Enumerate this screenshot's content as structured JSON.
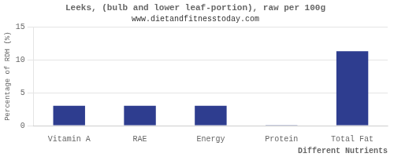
{
  "chart_data": {
    "type": "bar",
    "title": "Leeks, (bulb and lower leaf-portion), raw per 100g",
    "subtitle": "www.dietandfitnesstoday.com",
    "xlabel": "Different Nutrients",
    "ylabel": "Percentage of RDH (%)",
    "categories": [
      "Vitamin A",
      "RAE",
      "Energy",
      "Protein",
      "Total Fat"
    ],
    "values": [
      3.0,
      3.0,
      3.0,
      0.1,
      11.3
    ],
    "color": "#2e3d8f",
    "ylim": [
      0,
      15
    ],
    "yticks": [
      0,
      5,
      10,
      15
    ],
    "grid": true
  }
}
